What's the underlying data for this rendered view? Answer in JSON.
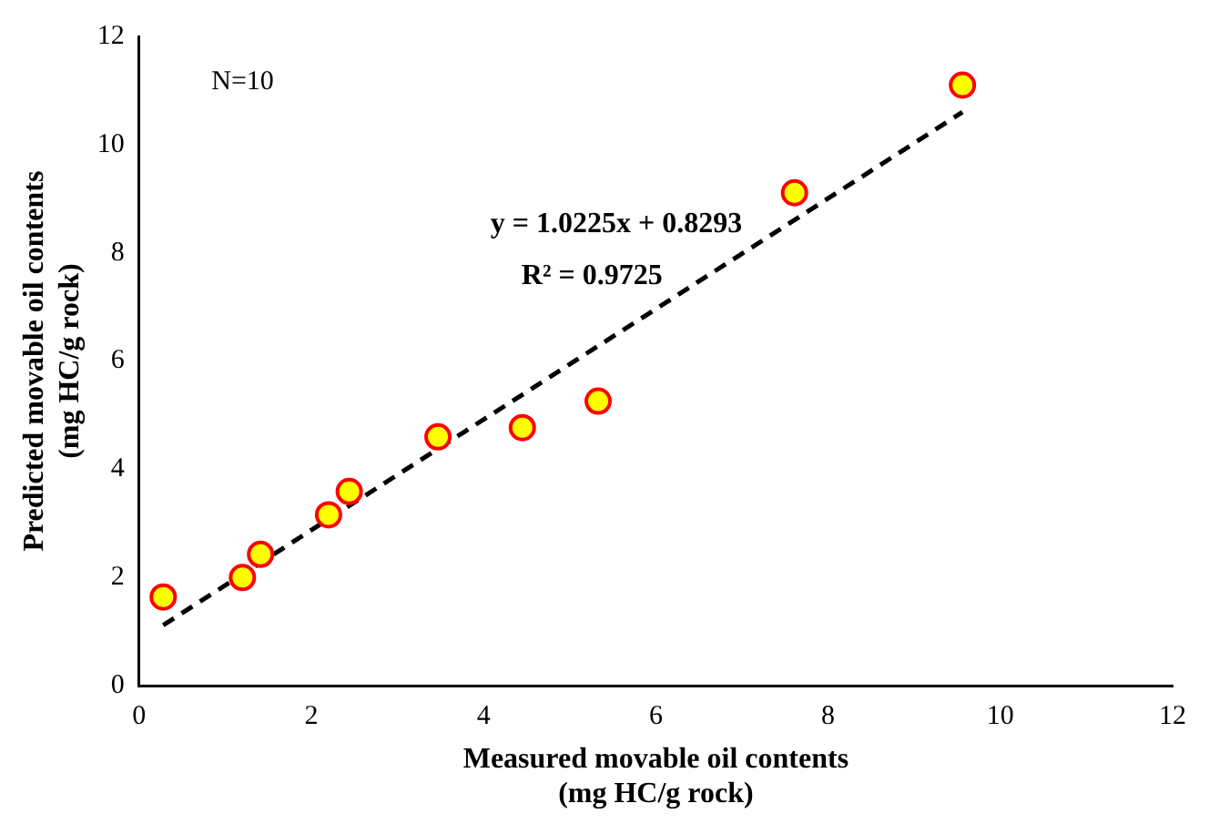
{
  "chart_data": {
    "type": "scatter",
    "xlabel": "Measured movable oil contents\n(mg HC/g rock)",
    "ylabel": "Predicted movable oil contents\n(mg HC/g rock)",
    "annotations": [
      "N=10",
      "y = 1.0225x + 0.8293",
      "R² = 0.9725"
    ],
    "xlim": [
      0,
      12
    ],
    "ylim": [
      0,
      12
    ],
    "xticks": [
      0,
      2,
      4,
      6,
      8,
      10,
      12
    ],
    "yticks": [
      0,
      2,
      4,
      6,
      8,
      10,
      12
    ],
    "grid": false,
    "legend": false,
    "series": [
      {
        "type": "scatter",
        "color": "#ffff00",
        "marker": "circle",
        "x": [
          0.28,
          1.2,
          1.41,
          2.2,
          2.44,
          3.47,
          4.45,
          5.33,
          7.61,
          9.56
        ],
        "values": [
          1.64,
          2.0,
          2.43,
          3.16,
          3.59,
          4.6,
          4.77,
          5.26,
          9.11,
          11.1
        ]
      },
      {
        "type": "line",
        "color": "#000000",
        "line_style": "dashed",
        "marker": "none",
        "x": [
          0.28,
          9.56
        ],
        "values": [
          1.12,
          10.6
        ]
      }
    ]
  }
}
